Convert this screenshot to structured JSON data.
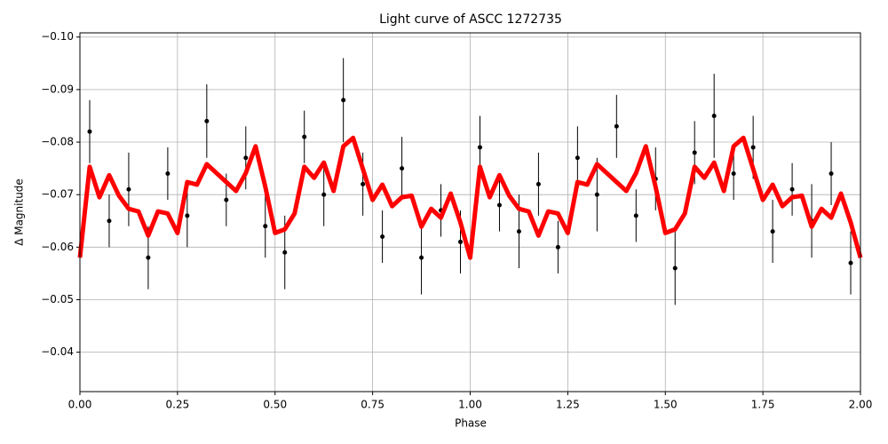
{
  "chart_data": {
    "type": "scatter",
    "title": "Light curve of ASCC 1272735",
    "x_label": "Phase",
    "y_label": "Δ Magnitude",
    "xlim": [
      0,
      2
    ],
    "ylim": [
      -0.0325,
      -0.1008
    ],
    "xticks": [
      {
        "value": 0,
        "label": "0.00"
      },
      {
        "value": 0.25,
        "label": "0.25"
      },
      {
        "value": 0.5,
        "label": "0.50"
      },
      {
        "value": 0.75,
        "label": "0.75"
      },
      {
        "value": 1,
        "label": "1.00"
      },
      {
        "value": 1.25,
        "label": "1.25"
      },
      {
        "value": 1.5,
        "label": "1.50"
      },
      {
        "value": 1.75,
        "label": "1.75"
      },
      {
        "value": 2,
        "label": "2.00"
      }
    ],
    "yticks": [
      {
        "value": -0.04,
        "label": "−0.04"
      },
      {
        "value": -0.05,
        "label": "−0.05"
      },
      {
        "value": -0.06,
        "label": "−0.06"
      },
      {
        "value": -0.07,
        "label": "−0.07"
      },
      {
        "value": -0.08,
        "label": "−0.08"
      },
      {
        "value": -0.09,
        "label": "−0.09"
      },
      {
        "value": -0.1,
        "label": "−0.10"
      }
    ],
    "grid": true,
    "series": [
      {
        "style": "errorbar",
        "color": "#000000",
        "x": [
          0.025,
          0.075,
          0.125,
          0.175,
          0.225,
          0.275,
          0.325,
          0.375,
          0.425,
          0.475,
          0.525,
          0.575,
          0.625,
          0.675,
          0.725,
          0.775,
          0.825,
          0.875,
          0.925,
          0.975,
          1.025,
          1.075,
          1.125,
          1.175,
          1.225,
          1.275,
          1.325,
          1.375,
          1.425,
          1.475,
          1.525,
          1.575,
          1.625,
          1.675,
          1.725,
          1.775,
          1.825,
          1.875,
          1.925,
          1.975
        ],
        "values": [
          -0.082,
          -0.065,
          -0.071,
          -0.058,
          -0.074,
          -0.066,
          -0.084,
          -0.069,
          -0.077,
          -0.064,
          -0.059,
          -0.081,
          -0.07,
          -0.088,
          -0.072,
          -0.062,
          -0.075,
          -0.058,
          -0.067,
          -0.061,
          -0.079,
          -0.068,
          -0.063,
          -0.072,
          -0.06,
          -0.077,
          -0.07,
          -0.083,
          -0.066,
          -0.073,
          -0.056,
          -0.078,
          -0.085,
          -0.074,
          -0.079,
          -0.063,
          -0.071,
          -0.065,
          -0.074,
          -0.057
        ],
        "errors": [
          0.006,
          0.005,
          0.007,
          0.006,
          0.005,
          0.006,
          0.007,
          0.005,
          0.006,
          0.006,
          0.007,
          0.005,
          0.006,
          0.008,
          0.006,
          0.005,
          0.006,
          0.007,
          0.005,
          0.006,
          0.006,
          0.005,
          0.007,
          0.006,
          0.005,
          0.006,
          0.007,
          0.006,
          0.005,
          0.006,
          0.007,
          0.006,
          0.008,
          0.005,
          0.006,
          0.006,
          0.005,
          0.007,
          0.006,
          0.006
        ]
      },
      {
        "style": "line",
        "color": "#ff0000",
        "x": [
          0,
          0.025,
          0.05,
          0.075,
          0.1,
          0.125,
          0.15,
          0.175,
          0.2,
          0.225,
          0.25,
          0.275,
          0.3,
          0.325,
          0.35,
          0.375,
          0.4,
          0.425,
          0.45,
          0.475,
          0.5,
          0.525,
          0.55,
          0.575,
          0.6,
          0.625,
          0.65,
          0.675,
          0.7,
          0.725,
          0.75,
          0.775,
          0.8,
          0.825,
          0.85,
          0.875,
          0.9,
          0.925,
          0.95,
          0.975,
          1,
          1.025,
          1.05,
          1.075,
          1.1,
          1.125,
          1.15,
          1.175,
          1.2,
          1.225,
          1.25,
          1.275,
          1.3,
          1.325,
          1.35,
          1.375,
          1.4,
          1.425,
          1.45,
          1.475,
          1.5,
          1.525,
          1.55,
          1.575,
          1.6,
          1.625,
          1.65,
          1.675,
          1.7,
          1.725,
          1.75,
          1.775,
          1.8,
          1.825,
          1.85,
          1.875,
          1.9,
          1.925,
          1.95,
          1.975,
          2
        ],
        "values": [
          -0.058,
          -0.0753,
          -0.0695,
          -0.0737,
          -0.0698,
          -0.0673,
          -0.0668,
          -0.0622,
          -0.0668,
          -0.0664,
          -0.0627,
          -0.0724,
          -0.0719,
          -0.0758,
          -0.0741,
          -0.0724,
          -0.0707,
          -0.0741,
          -0.0792,
          -0.0715,
          -0.0627,
          -0.0634,
          -0.0664,
          -0.0753,
          -0.0732,
          -0.0761,
          -0.0707,
          -0.0792,
          -0.0808,
          -0.0749,
          -0.069,
          -0.0719,
          -0.0678,
          -0.0695,
          -0.0698,
          -0.0639,
          -0.0673,
          -0.0656,
          -0.0702,
          -0.0647,
          -0.058,
          -0.0753,
          -0.0695,
          -0.0737,
          -0.0698,
          -0.0673,
          -0.0668,
          -0.0622,
          -0.0668,
          -0.0664,
          -0.0627,
          -0.0724,
          -0.0719,
          -0.0758,
          -0.0741,
          -0.0724,
          -0.0707,
          -0.0741,
          -0.0792,
          -0.0715,
          -0.0627,
          -0.0634,
          -0.0664,
          -0.0753,
          -0.0732,
          -0.0761,
          -0.0707,
          -0.0792,
          -0.0808,
          -0.0749,
          -0.069,
          -0.0719,
          -0.0678,
          -0.0695,
          -0.0698,
          -0.0639,
          -0.0673,
          -0.0656,
          -0.0702,
          -0.0647,
          -0.058
        ]
      }
    ]
  }
}
